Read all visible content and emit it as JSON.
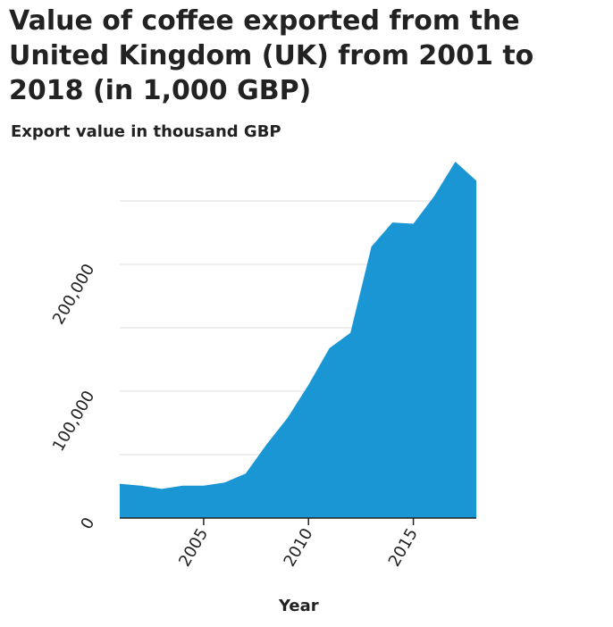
{
  "chart_data": {
    "type": "area",
    "title": "Value of coffee exported from the United Kingdom (UK) from 2001 to 2018 (in 1,000 GBP)",
    "xlabel": "Year",
    "ylabel": "Export value in thousand GBP",
    "x": [
      2001,
      2002,
      2003,
      2004,
      2005,
      2006,
      2007,
      2008,
      2009,
      2010,
      2011,
      2012,
      2013,
      2014,
      2015,
      2016,
      2017,
      2018
    ],
    "values": [
      27000,
      25500,
      23000,
      25500,
      25500,
      28000,
      35000,
      58000,
      79000,
      105000,
      134000,
      146000,
      214000,
      233000,
      232000,
      254000,
      281000,
      266000
    ],
    "xlim": [
      2001,
      2018
    ],
    "ylim": [
      0,
      250000
    ],
    "x_ticks": [
      2005,
      2010,
      2015
    ],
    "x_tick_labels": [
      "2005",
      "2010",
      "2015"
    ],
    "y_ticks": [
      0,
      100000,
      200000
    ],
    "y_tick_labels": [
      "0",
      "100,000",
      "200,000"
    ],
    "y_gridlines": [
      50000,
      100000,
      150000,
      200000,
      250000
    ],
    "grid": true,
    "color": "#1a96d4"
  }
}
